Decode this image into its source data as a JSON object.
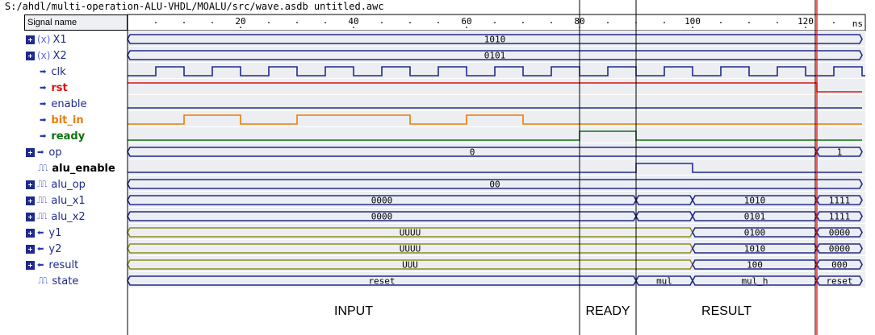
{
  "title_path": "S:/ahdl/multi-operation-ALU-VHDL/MOALU/src/wave.asdb untitled.awc",
  "header": {
    "signal_name": "Signal name",
    "unit": "ns"
  },
  "ruler_ticks": [
    {
      "label": "20",
      "t": 20
    },
    {
      "label": "40",
      "t": 40
    },
    {
      "label": "60",
      "t": 60
    },
    {
      "label": "80",
      "t": 80
    },
    {
      "label": "100",
      "t": 100
    },
    {
      "label": "120",
      "t": 120
    }
  ],
  "signals": [
    {
      "name": "X1",
      "icon": "variable-icon",
      "expand": true,
      "color": "#1e2a8c",
      "bold": false,
      "type": "bus",
      "segments": [
        {
          "from": 0,
          "to": 130,
          "value": "1010"
        }
      ]
    },
    {
      "name": "X2",
      "icon": "variable-icon",
      "expand": true,
      "color": "#1e2a8c",
      "bold": false,
      "type": "bus",
      "segments": [
        {
          "from": 0,
          "to": 130,
          "value": "0101"
        }
      ]
    },
    {
      "name": "clk",
      "icon": "input-arrow-icon",
      "expand": false,
      "color": "#1e2a8c",
      "bold": false,
      "type": "clock",
      "period": 10,
      "start_low": 5
    },
    {
      "name": "rst",
      "icon": "input-arrow-icon",
      "expand": false,
      "color": "#e01010",
      "bold": true,
      "type": "bit",
      "transitions": [
        [
          0,
          1
        ],
        [
          122,
          0
        ]
      ]
    },
    {
      "name": "enable",
      "icon": "input-arrow-icon",
      "expand": false,
      "color": "#1e2a8c",
      "bold": false,
      "type": "bit",
      "transitions": []
    },
    {
      "name": "bit_in",
      "icon": "input-arrow-icon",
      "expand": false,
      "color": "#f07c00",
      "bold": true,
      "type": "bit",
      "transitions": [
        [
          0,
          0
        ],
        [
          10,
          1
        ],
        [
          20,
          0
        ],
        [
          30,
          1
        ],
        [
          50,
          0
        ],
        [
          60,
          1
        ],
        [
          70,
          0
        ]
      ]
    },
    {
      "name": "ready",
      "icon": "input-arrow-icon",
      "expand": false,
      "color": "#107010",
      "bold": true,
      "type": "bit",
      "transitions": [
        [
          0,
          0
        ],
        [
          80,
          1
        ],
        [
          90,
          0
        ]
      ]
    },
    {
      "name": "op",
      "icon": "input-arrow-icon",
      "expand": true,
      "color": "#1e2a8c",
      "bold": false,
      "type": "bus",
      "segments": [
        {
          "from": 0,
          "to": 122,
          "value": "0"
        },
        {
          "from": 122,
          "to": 130,
          "value": "1"
        }
      ]
    },
    {
      "name": "alu_enable",
      "icon": "internal-signal-icon",
      "expand": false,
      "color": "#1e2a8c",
      "bold": true,
      "type": "bit",
      "transitions": [
        [
          0,
          0
        ],
        [
          90,
          1
        ],
        [
          100,
          0
        ]
      ]
    },
    {
      "name": "alu_op",
      "icon": "internal-signal-icon",
      "expand": true,
      "color": "#1e2a8c",
      "bold": false,
      "type": "bus",
      "segments": [
        {
          "from": 0,
          "to": 130,
          "value": "00"
        }
      ]
    },
    {
      "name": "alu_x1",
      "icon": "internal-signal-icon",
      "expand": true,
      "color": "#1e2a8c",
      "bold": false,
      "type": "bus",
      "segments": [
        {
          "from": 0,
          "to": 90,
          "value": "0000"
        },
        {
          "from": 90,
          "to": 100,
          "value": ""
        },
        {
          "from": 100,
          "to": 122,
          "value": "1010"
        },
        {
          "from": 122,
          "to": 130,
          "value": "1111"
        }
      ]
    },
    {
      "name": "alu_x2",
      "icon": "internal-signal-icon",
      "expand": true,
      "color": "#1e2a8c",
      "bold": false,
      "type": "bus",
      "segments": [
        {
          "from": 0,
          "to": 90,
          "value": "0000"
        },
        {
          "from": 90,
          "to": 100,
          "value": ""
        },
        {
          "from": 100,
          "to": 122,
          "value": "0101"
        },
        {
          "from": 122,
          "to": 130,
          "value": "1111"
        }
      ]
    },
    {
      "name": "y1",
      "icon": "output-arrow-icon",
      "expand": true,
      "color": "#8b8b20",
      "bold": false,
      "type": "bus",
      "segments": [
        {
          "from": 0,
          "to": 100,
          "value": "UUUU",
          "color": "#8b8b20"
        },
        {
          "from": 100,
          "to": 122,
          "value": "0100"
        },
        {
          "from": 122,
          "to": 130,
          "value": "0000"
        }
      ]
    },
    {
      "name": "y2",
      "icon": "output-arrow-icon",
      "expand": true,
      "color": "#8b8b20",
      "bold": false,
      "type": "bus",
      "segments": [
        {
          "from": 0,
          "to": 100,
          "value": "UUUU",
          "color": "#8b8b20"
        },
        {
          "from": 100,
          "to": 122,
          "value": "1010"
        },
        {
          "from": 122,
          "to": 130,
          "value": "0000"
        }
      ]
    },
    {
      "name": "result",
      "icon": "output-arrow-icon",
      "expand": true,
      "color": "#8b8b20",
      "bold": false,
      "type": "bus",
      "segments": [
        {
          "from": 0,
          "to": 100,
          "value": "UUU",
          "color": "#8b8b20"
        },
        {
          "from": 100,
          "to": 122,
          "value": "100"
        },
        {
          "from": 122,
          "to": 130,
          "value": "000"
        }
      ]
    },
    {
      "name": "state",
      "icon": "internal-signal-icon",
      "expand": false,
      "color": "#1e2a8c",
      "bold": false,
      "type": "bus",
      "segments": [
        {
          "from": 0,
          "to": 90,
          "value": "reset"
        },
        {
          "from": 90,
          "to": 100,
          "value": "mul"
        },
        {
          "from": 100,
          "to": 122,
          "value": "mul_h"
        },
        {
          "from": 122,
          "to": 130,
          "value": "reset"
        }
      ]
    }
  ],
  "phases": [
    {
      "label": "INPUT",
      "from": 0,
      "to": 80
    },
    {
      "label": "READY",
      "from": 80,
      "to": 90
    },
    {
      "label": "RESULT",
      "from": 90,
      "to": 122
    }
  ],
  "cursor_time": 122,
  "colors": {
    "cursor": "#e01010",
    "divider": "#000000",
    "bus_default": "#1e2a8c",
    "shade": "#eceef2"
  }
}
